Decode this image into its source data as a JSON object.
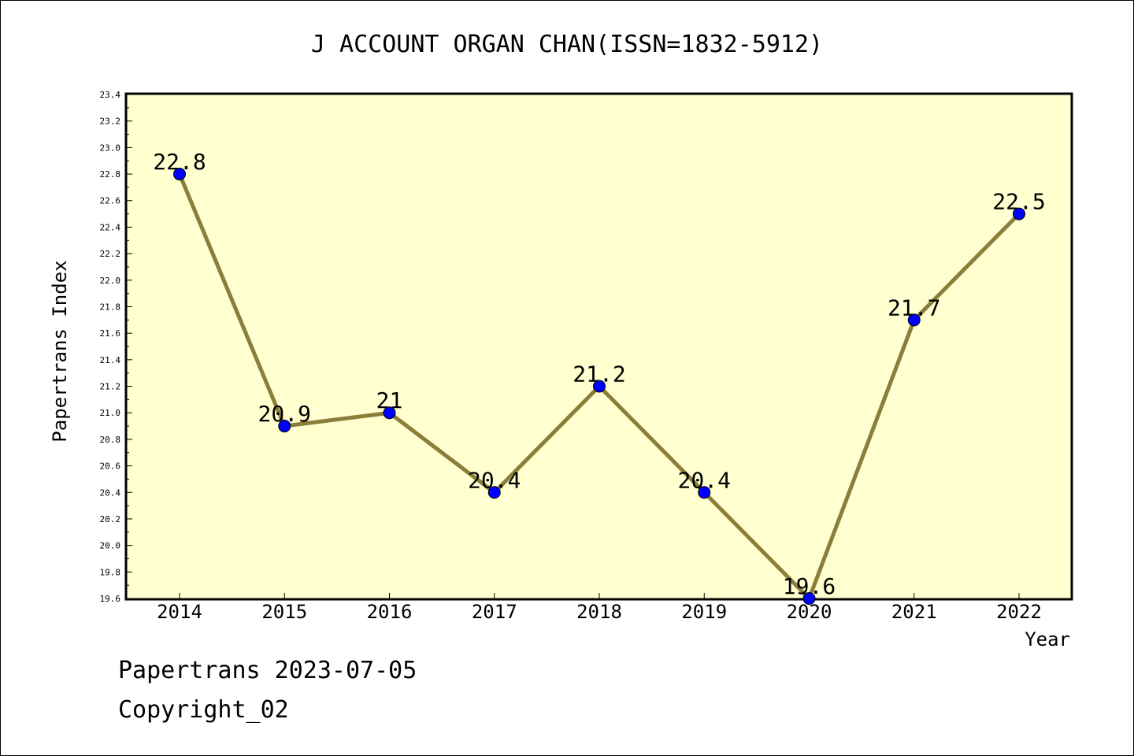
{
  "chart_data": {
    "type": "line",
    "title": "J ACCOUNT ORGAN CHAN(ISSN=1832-5912)",
    "xlabel": "Year",
    "ylabel": "Papertrans Index",
    "categories": [
      "2014",
      "2015",
      "2016",
      "2017",
      "2018",
      "2019",
      "2020",
      "2021",
      "2022"
    ],
    "values": [
      22.8,
      20.9,
      21.0,
      20.4,
      21.2,
      20.4,
      19.6,
      21.7,
      22.5
    ],
    "data_labels": [
      "22.8",
      "20.9",
      "21",
      "20.4",
      "21.2",
      "20.4",
      "19.6",
      "21.7",
      "22.5"
    ],
    "ylim": [
      19.6,
      23.4
    ],
    "yticks": [
      "19.6",
      "19.8",
      "20.0",
      "20.2",
      "20.4",
      "20.6",
      "20.8",
      "21.0",
      "21.2",
      "21.4",
      "21.6",
      "21.8",
      "22.0",
      "22.2",
      "22.4",
      "22.6",
      "22.8",
      "23.0",
      "23.2",
      "23.4"
    ],
    "grid": false,
    "legend": "none",
    "colors": {
      "plot_background": "#ffffd0",
      "line": "#8b7d3a",
      "marker": "#0000ff"
    }
  },
  "footer": {
    "date_line": "Papertrans 2023-07-05",
    "copyright": "Copyright_02"
  }
}
